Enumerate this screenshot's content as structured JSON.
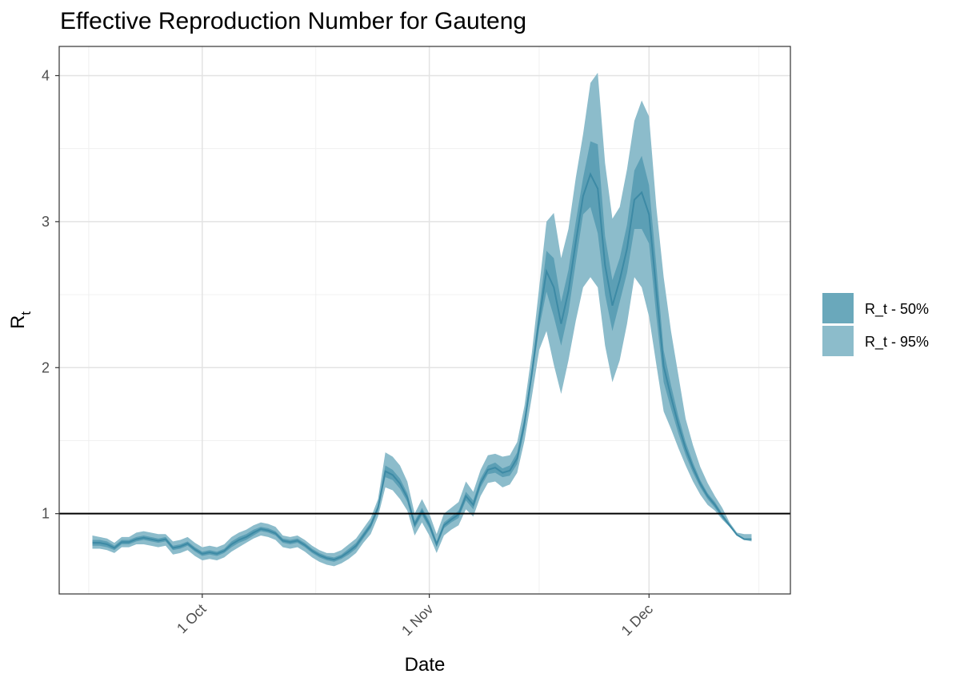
{
  "chart_data": {
    "type": "area",
    "title": "Effective Reproduction Number for Gauteng",
    "xlabel": "Date",
    "ylabel": "R",
    "ylabel_subscript": "t",
    "x_ticks": [
      "1 Oct",
      "1 Nov",
      "1 Dec"
    ],
    "y_ticks": [
      1,
      2,
      3,
      4
    ],
    "ylim": [
      0.45,
      4.2
    ],
    "reference_line": {
      "y": 1,
      "color": "#000000"
    },
    "grid": true,
    "legend_position": "right",
    "legend": [
      {
        "label": "R_t - 50%",
        "color": "#6aa8bb"
      },
      {
        "label": "R_t - 95%",
        "color": "#8cbccb"
      }
    ],
    "colors": {
      "band95": "#8cbccb",
      "band50": "#5c9fb5",
      "line": "#3d8aa5"
    },
    "x": [
      "2020-09-16",
      "2020-09-17",
      "2020-09-18",
      "2020-09-19",
      "2020-09-20",
      "2020-09-21",
      "2020-09-22",
      "2020-09-23",
      "2020-09-24",
      "2020-09-25",
      "2020-09-26",
      "2020-09-27",
      "2020-09-28",
      "2020-09-29",
      "2020-09-30",
      "2020-10-01",
      "2020-10-02",
      "2020-10-03",
      "2020-10-04",
      "2020-10-05",
      "2020-10-06",
      "2020-10-07",
      "2020-10-08",
      "2020-10-09",
      "2020-10-10",
      "2020-10-11",
      "2020-10-12",
      "2020-10-13",
      "2020-10-14",
      "2020-10-15",
      "2020-10-16",
      "2020-10-17",
      "2020-10-18",
      "2020-10-19",
      "2020-10-20",
      "2020-10-21",
      "2020-10-22",
      "2020-10-23",
      "2020-10-24",
      "2020-10-25",
      "2020-10-26",
      "2020-10-27",
      "2020-10-28",
      "2020-10-29",
      "2020-10-30",
      "2020-10-31",
      "2020-11-01",
      "2020-11-02",
      "2020-11-03",
      "2020-11-04",
      "2020-11-05",
      "2020-11-06",
      "2020-11-07",
      "2020-11-08",
      "2020-11-09",
      "2020-11-10",
      "2020-11-11",
      "2020-11-12",
      "2020-11-13",
      "2020-11-14",
      "2020-11-15",
      "2020-11-16",
      "2020-11-17",
      "2020-11-18",
      "2020-11-19",
      "2020-11-20",
      "2020-11-21",
      "2020-11-22",
      "2020-11-23",
      "2020-11-24",
      "2020-11-25",
      "2020-11-26",
      "2020-11-27",
      "2020-11-28",
      "2020-11-29",
      "2020-11-30",
      "2020-12-01",
      "2020-12-02",
      "2020-12-03",
      "2020-12-04",
      "2020-12-05",
      "2020-12-06",
      "2020-12-07",
      "2020-12-08",
      "2020-12-09",
      "2020-12-10",
      "2020-12-11",
      "2020-12-12",
      "2020-12-13",
      "2020-12-14",
      "2020-12-15"
    ],
    "series": [
      {
        "name": "R_t - 95%",
        "kind": "band",
        "lower": [
          0.76,
          0.76,
          0.75,
          0.73,
          0.77,
          0.77,
          0.79,
          0.79,
          0.78,
          0.77,
          0.78,
          0.72,
          0.73,
          0.75,
          0.71,
          0.68,
          0.69,
          0.68,
          0.7,
          0.74,
          0.77,
          0.8,
          0.83,
          0.85,
          0.84,
          0.82,
          0.77,
          0.76,
          0.77,
          0.74,
          0.7,
          0.67,
          0.65,
          0.64,
          0.66,
          0.69,
          0.73,
          0.8,
          0.86,
          0.98,
          1.18,
          1.16,
          1.1,
          1.02,
          0.85,
          0.94,
          0.85,
          0.73,
          0.85,
          0.89,
          0.92,
          1.03,
          0.98,
          1.12,
          1.21,
          1.22,
          1.18,
          1.2,
          1.28,
          1.5,
          1.8,
          2.12,
          2.25,
          2.02,
          1.82,
          2.05,
          2.32,
          2.55,
          2.62,
          2.55,
          2.15,
          1.9,
          2.05,
          2.3,
          2.62,
          2.55,
          2.35,
          2.02,
          1.7,
          1.58,
          1.45,
          1.33,
          1.22,
          1.13,
          1.06,
          1.02,
          0.96,
          0.91,
          0.85,
          0.82,
          0.81
        ],
        "upper": [
          0.85,
          0.84,
          0.83,
          0.8,
          0.84,
          0.84,
          0.87,
          0.88,
          0.87,
          0.86,
          0.86,
          0.81,
          0.82,
          0.84,
          0.8,
          0.77,
          0.78,
          0.77,
          0.79,
          0.84,
          0.87,
          0.89,
          0.92,
          0.94,
          0.93,
          0.91,
          0.85,
          0.84,
          0.85,
          0.82,
          0.78,
          0.75,
          0.73,
          0.73,
          0.75,
          0.79,
          0.83,
          0.9,
          0.97,
          1.1,
          1.42,
          1.39,
          1.33,
          1.22,
          1.0,
          1.1,
          1.0,
          0.86,
          1.0,
          1.04,
          1.08,
          1.22,
          1.15,
          1.3,
          1.4,
          1.41,
          1.39,
          1.4,
          1.49,
          1.74,
          2.1,
          2.55,
          3.0,
          3.06,
          2.75,
          2.95,
          3.3,
          3.6,
          3.95,
          4.02,
          3.4,
          3.02,
          3.1,
          3.36,
          3.69,
          3.83,
          3.72,
          3.1,
          2.62,
          2.25,
          1.95,
          1.65,
          1.47,
          1.32,
          1.21,
          1.12,
          1.04,
          0.94,
          0.87,
          0.86,
          0.86
        ]
      },
      {
        "name": "R_t - 50%",
        "kind": "band",
        "lower": [
          0.78,
          0.78,
          0.77,
          0.75,
          0.79,
          0.79,
          0.81,
          0.82,
          0.81,
          0.8,
          0.81,
          0.75,
          0.76,
          0.78,
          0.74,
          0.71,
          0.72,
          0.71,
          0.73,
          0.77,
          0.8,
          0.82,
          0.85,
          0.88,
          0.87,
          0.85,
          0.8,
          0.79,
          0.8,
          0.77,
          0.73,
          0.7,
          0.68,
          0.67,
          0.69,
          0.72,
          0.76,
          0.83,
          0.9,
          1.02,
          1.25,
          1.23,
          1.17,
          1.08,
          0.9,
          0.99,
          0.9,
          0.77,
          0.9,
          0.94,
          0.97,
          1.09,
          1.03,
          1.18,
          1.27,
          1.28,
          1.25,
          1.26,
          1.34,
          1.58,
          1.92,
          2.27,
          2.52,
          2.35,
          2.15,
          2.38,
          2.72,
          3.05,
          3.1,
          2.92,
          2.5,
          2.25,
          2.45,
          2.65,
          2.95,
          2.95,
          2.85,
          2.35,
          1.9,
          1.72,
          1.55,
          1.4,
          1.28,
          1.18,
          1.1,
          1.04,
          0.97,
          0.91,
          0.85,
          0.82,
          0.82
        ],
        "upper": [
          0.82,
          0.82,
          0.81,
          0.78,
          0.82,
          0.82,
          0.84,
          0.85,
          0.84,
          0.83,
          0.84,
          0.78,
          0.79,
          0.81,
          0.77,
          0.74,
          0.75,
          0.74,
          0.76,
          0.81,
          0.84,
          0.86,
          0.89,
          0.91,
          0.9,
          0.88,
          0.83,
          0.82,
          0.83,
          0.8,
          0.76,
          0.73,
          0.71,
          0.7,
          0.72,
          0.76,
          0.8,
          0.87,
          0.94,
          1.06,
          1.33,
          1.3,
          1.24,
          1.14,
          0.95,
          1.04,
          0.95,
          0.81,
          0.94,
          0.98,
          1.02,
          1.15,
          1.09,
          1.24,
          1.33,
          1.35,
          1.31,
          1.33,
          1.42,
          1.66,
          2.0,
          2.4,
          2.8,
          2.75,
          2.45,
          2.67,
          3.0,
          3.3,
          3.55,
          3.53,
          2.9,
          2.6,
          2.75,
          2.98,
          3.35,
          3.45,
          3.25,
          2.7,
          2.12,
          1.88,
          1.67,
          1.49,
          1.35,
          1.23,
          1.14,
          1.08,
          1.0,
          0.93,
          0.86,
          0.83,
          0.83
        ]
      },
      {
        "name": "",
        "kind": "line",
        "values": [
          0.8,
          0.8,
          0.79,
          0.765,
          0.805,
          0.805,
          0.825,
          0.835,
          0.825,
          0.815,
          0.825,
          0.765,
          0.775,
          0.795,
          0.755,
          0.725,
          0.735,
          0.725,
          0.745,
          0.79,
          0.82,
          0.84,
          0.87,
          0.895,
          0.885,
          0.865,
          0.815,
          0.805,
          0.815,
          0.785,
          0.745,
          0.715,
          0.695,
          0.685,
          0.705,
          0.74,
          0.78,
          0.85,
          0.92,
          1.04,
          1.29,
          1.265,
          1.205,
          1.11,
          0.925,
          1.015,
          0.925,
          0.79,
          0.92,
          0.96,
          0.995,
          1.12,
          1.06,
          1.21,
          1.3,
          1.315,
          1.28,
          1.295,
          1.38,
          1.62,
          1.96,
          2.335,
          2.66,
          2.55,
          2.3,
          2.525,
          2.86,
          3.175,
          3.325,
          3.225,
          2.7,
          2.425,
          2.6,
          2.815,
          3.15,
          3.2,
          3.05,
          2.525,
          2.01,
          1.8,
          1.61,
          1.445,
          1.315,
          1.205,
          1.12,
          1.06,
          0.985,
          0.92,
          0.855,
          0.825,
          0.825
        ]
      }
    ]
  }
}
